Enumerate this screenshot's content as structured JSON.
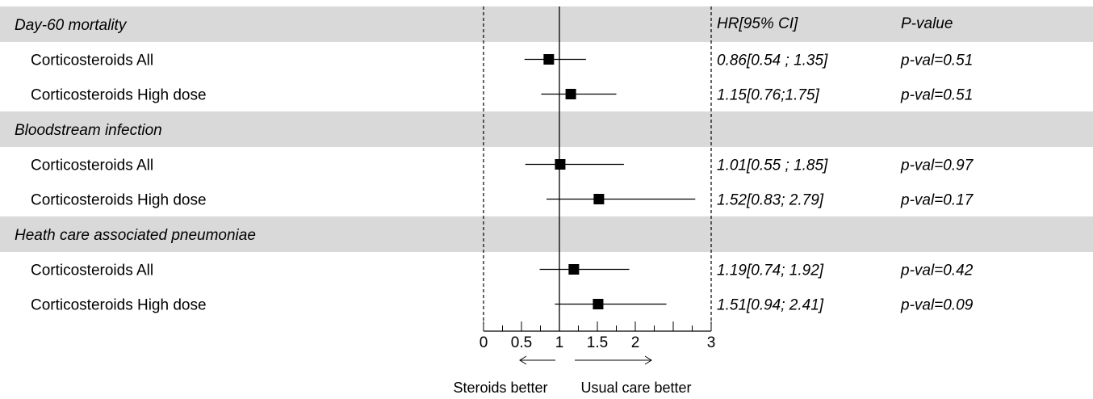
{
  "chart_data": {
    "type": "forest",
    "title": "",
    "xlabel": "",
    "x_ticks": [
      0,
      0.5,
      1,
      1.5,
      2,
      3
    ],
    "x_range": [
      0,
      3
    ],
    "reference_line": 1,
    "column_headers": {
      "estimate": "HR[95% CI]",
      "pvalue": "P-value"
    },
    "direction_labels": {
      "left": "Steroids better",
      "right": "Usual care better"
    },
    "colors": {
      "band": "#d9d9d9",
      "marker": "#000000"
    },
    "groups": [
      {
        "label": "Day-60 mortality",
        "rows": [
          {
            "label": "Corticosteroids All",
            "hr": 0.86,
            "lo": 0.54,
            "hi": 1.35,
            "ci_text": "0.86[0.54 ; 1.35]",
            "p_text": "p-val=0.51"
          },
          {
            "label": "Corticosteroids High dose",
            "hr": 1.15,
            "lo": 0.76,
            "hi": 1.75,
            "ci_text": "1.15[0.76;1.75]",
            "p_text": "p-val=0.51"
          }
        ]
      },
      {
        "label": "Bloodstream infection",
        "rows": [
          {
            "label": "Corticosteroids All",
            "hr": 1.01,
            "lo": 0.55,
            "hi": 1.85,
            "ci_text": "1.01[0.55 ; 1.85]",
            "p_text": "p-val=0.97"
          },
          {
            "label": "Corticosteroids High dose",
            "hr": 1.52,
            "lo": 0.83,
            "hi": 2.79,
            "ci_text": "1.52[0.83; 2.79]",
            "p_text": "p-val=0.17"
          }
        ]
      },
      {
        "label": "Heath care associated pneumoniae",
        "rows": [
          {
            "label": "Corticosteroids All",
            "hr": 1.19,
            "lo": 0.74,
            "hi": 1.92,
            "ci_text": "1.19[0.74; 1.92]",
            "p_text": "p-val=0.42"
          },
          {
            "label": "Corticosteroids High dose",
            "hr": 1.51,
            "lo": 0.94,
            "hi": 2.41,
            "ci_text": "1.51[0.94; 2.41]",
            "p_text": "p-val=0.09"
          }
        ]
      }
    ]
  }
}
